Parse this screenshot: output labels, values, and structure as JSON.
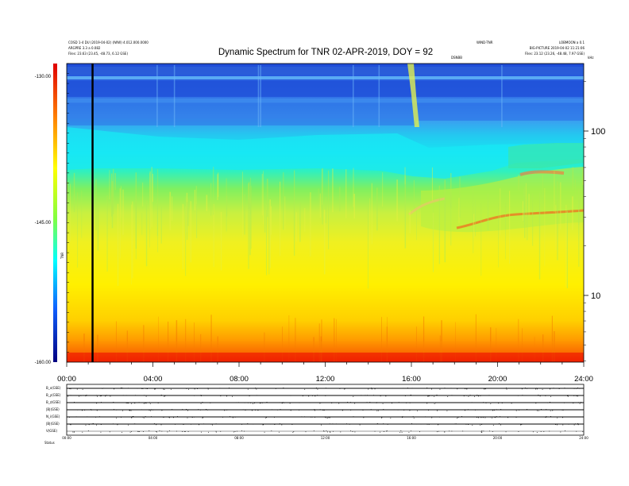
{
  "header": {
    "title": "Dynamic Spectrum for TNR 02-APR-2019, DOY = 92",
    "left_line1": "COSD 1-4 DU (2019-04-02) (IWW) 4.012.000.0000",
    "left_line2": "ARGPRE 3.3 a 0.082",
    "left_line3": "Files: 23.63 (23.45, -48.73, 6.12 GSE)",
    "mid_right": "WIND-TNR",
    "right_line1": "LOBMOON a 0.1",
    "right_line2": "BIG-PICTURE 2019-04-02 11:21:06",
    "right_line3": "Files: 23.12 (23.26, -48.48, 7.97 GSE)",
    "sub_center": "DSNBB",
    "right_unit": "kHz"
  },
  "chart_data": {
    "type": "heatmap",
    "title": "Dynamic Spectrum for TNR 02-APR-2019, DOY = 92",
    "x_ticks": [
      "00:00",
      "04:00",
      "08:00",
      "12:00",
      "16:00",
      "20:00",
      "24:00"
    ],
    "x_range_hours": [
      0,
      24
    ],
    "y_right_ticks": [
      "100",
      "10"
    ],
    "y_right_scale": "log",
    "colorbar": {
      "ticks": [
        "-130.00",
        "-145.00",
        "-160.00"
      ],
      "range": [
        -160,
        -130
      ],
      "label": "TNR"
    },
    "marker_time_hours": 1.2,
    "bottom_panel": {
      "row_labels": [
        "B_x(GSE)",
        "B_y(GSE)",
        "B_z(GSE)",
        "|B|(GSE)",
        "N_i(GSE)",
        "|B|(GSE)",
        "V(GSE)"
      ],
      "x_ticks": [
        "00:00",
        "04:00",
        "08:00",
        "12:00",
        "16:00",
        "20:00",
        "24:00"
      ],
      "footer": "Status"
    }
  }
}
